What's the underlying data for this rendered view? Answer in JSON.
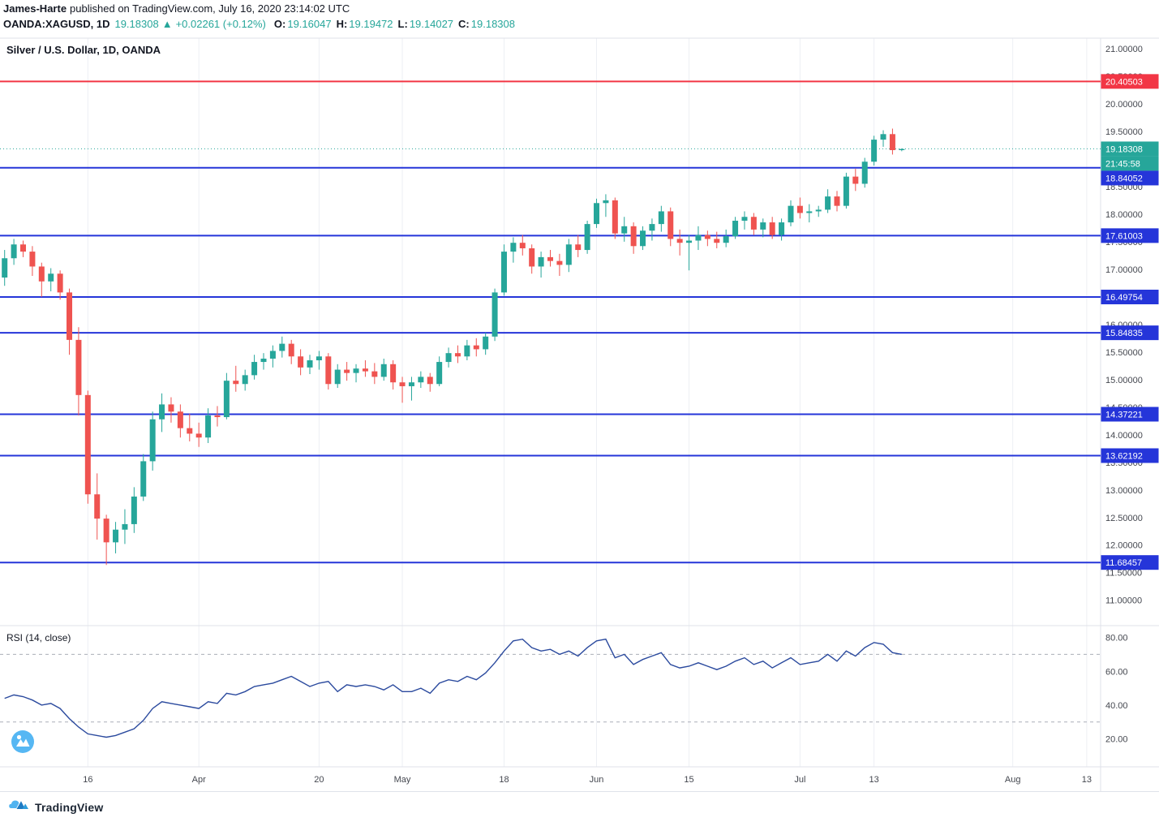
{
  "header": {
    "author": "James-Harte",
    "published": "published on TradingView.com, July 16, 2020 23:14:02 UTC",
    "symbol": "OANDA:XAGUSD, 1D",
    "last_price": "19.18308",
    "arrow": "▲",
    "change": "+0.02261 (+0.12%)",
    "ohlc": [
      {
        "label": "O:",
        "value": "19.16047"
      },
      {
        "label": "H:",
        "value": "19.19472"
      },
      {
        "label": "L:",
        "value": "19.14027"
      },
      {
        "label": "C:",
        "value": "19.18308"
      }
    ]
  },
  "chart": {
    "legend": "Silver / U.S. Dollar, 1D, OANDA",
    "rsi_legend": "RSI (14, close)"
  },
  "footer": {
    "brand": "TradingView"
  },
  "colors": {
    "up": "#26a69a",
    "down": "#ef5350",
    "grid": "#edeff4",
    "border": "#dfe2ea",
    "axis_text": "#44474f",
    "teal": "#26a69a",
    "red_line": "#f23645",
    "blue_line": "#2535d9",
    "rsi_line": "#2b4a9e",
    "watermark_blue": "#56b7f3"
  },
  "chart_data": [
    {
      "type": "candlestick",
      "symbol": "XAGUSD",
      "timeframe": "1D",
      "title": "Silver / U.S. Dollar, 1D, OANDA",
      "slots": 119,
      "ylim": [
        10.54,
        21.19
      ],
      "y_ticks": {
        "min": 11,
        "max": 21,
        "step": 0.5,
        "decimals": 5
      },
      "x_ticks": [
        {
          "i": 9,
          "label": "16"
        },
        {
          "i": 21,
          "label": "Apr"
        },
        {
          "i": 34,
          "label": "20"
        },
        {
          "i": 43,
          "label": "May"
        },
        {
          "i": 54,
          "label": "18"
        },
        {
          "i": 64,
          "label": "Jun"
        },
        {
          "i": 74,
          "label": "15"
        },
        {
          "i": 86,
          "label": "Jul"
        },
        {
          "i": 94,
          "label": "13"
        },
        {
          "i": 109,
          "label": "Aug"
        },
        {
          "i": 117,
          "label": "13"
        }
      ],
      "h_lines": [
        {
          "value": 20.40503,
          "label": "20.40503",
          "color": "#f23645"
        },
        {
          "value": 18.84052,
          "label": "18.84052",
          "color": "#2535d9"
        },
        {
          "value": 17.61003,
          "label": "17.61003",
          "color": "#2535d9"
        },
        {
          "value": 16.49754,
          "label": "16.49754",
          "color": "#2535d9"
        },
        {
          "value": 15.84835,
          "label": "15.84835",
          "color": "#2535d9"
        },
        {
          "value": 14.37221,
          "label": "14.37221",
          "color": "#2535d9"
        },
        {
          "value": 13.62192,
          "label": "13.62192",
          "color": "#2535d9"
        },
        {
          "value": 11.68457,
          "label": "11.68457",
          "color": "#2535d9"
        }
      ],
      "price_line": {
        "value": 19.18308,
        "label": "19.18308",
        "countdown": "21:45:58",
        "color": "#26a69a"
      },
      "ohlc": [
        [
          16.85,
          17.35,
          16.7,
          17.2
        ],
        [
          17.2,
          17.55,
          17.08,
          17.45
        ],
        [
          17.45,
          17.52,
          17.22,
          17.32
        ],
        [
          17.32,
          17.42,
          16.88,
          17.05
        ],
        [
          17.05,
          17.12,
          16.5,
          16.78
        ],
        [
          16.78,
          17.02,
          16.6,
          16.92
        ],
        [
          16.92,
          16.98,
          16.45,
          16.58
        ],
        [
          16.58,
          16.65,
          15.45,
          15.72
        ],
        [
          15.72,
          15.95,
          14.35,
          14.72
        ],
        [
          14.72,
          14.8,
          12.75,
          12.92
        ],
        [
          12.92,
          13.3,
          12.1,
          12.48
        ],
        [
          12.48,
          12.55,
          11.64,
          12.05
        ],
        [
          12.05,
          12.42,
          11.85,
          12.28
        ],
        [
          12.28,
          12.65,
          12.02,
          12.38
        ],
        [
          12.38,
          13.05,
          12.22,
          12.88
        ],
        [
          12.88,
          13.65,
          12.8,
          13.52
        ],
        [
          13.52,
          14.42,
          13.35,
          14.28
        ],
        [
          14.28,
          14.75,
          14.05,
          14.55
        ],
        [
          14.55,
          14.68,
          14.22,
          14.42
        ],
        [
          14.42,
          14.55,
          13.95,
          14.12
        ],
        [
          14.12,
          14.38,
          13.88,
          14.02
        ],
        [
          14.02,
          14.22,
          13.78,
          13.95
        ],
        [
          13.95,
          14.48,
          13.85,
          14.35
        ],
        [
          14.35,
          14.52,
          14.15,
          14.32
        ],
        [
          14.32,
          15.12,
          14.28,
          14.98
        ],
        [
          14.98,
          15.25,
          14.78,
          14.92
        ],
        [
          14.92,
          15.18,
          14.8,
          15.08
        ],
        [
          15.08,
          15.45,
          15.0,
          15.32
        ],
        [
          15.32,
          15.48,
          15.18,
          15.38
        ],
        [
          15.38,
          15.62,
          15.22,
          15.52
        ],
        [
          15.52,
          15.78,
          15.4,
          15.65
        ],
        [
          15.65,
          15.72,
          15.28,
          15.42
        ],
        [
          15.42,
          15.55,
          15.08,
          15.22
        ],
        [
          15.22,
          15.45,
          15.1,
          15.35
        ],
        [
          15.35,
          15.52,
          15.18,
          15.42
        ],
        [
          15.42,
          15.48,
          14.82,
          14.92
        ],
        [
          14.92,
          15.28,
          14.85,
          15.18
        ],
        [
          15.18,
          15.32,
          14.98,
          15.12
        ],
        [
          15.12,
          15.28,
          14.95,
          15.2
        ],
        [
          15.2,
          15.35,
          15.05,
          15.15
        ],
        [
          15.15,
          15.3,
          14.92,
          15.05
        ],
        [
          15.05,
          15.38,
          14.98,
          15.28
        ],
        [
          15.28,
          15.35,
          14.82,
          14.95
        ],
        [
          14.95,
          15.05,
          14.58,
          14.88
        ],
        [
          14.88,
          15.05,
          14.62,
          14.95
        ],
        [
          14.95,
          15.15,
          14.85,
          15.05
        ],
        [
          15.05,
          15.12,
          14.78,
          14.92
        ],
        [
          14.92,
          15.42,
          14.88,
          15.32
        ],
        [
          15.32,
          15.58,
          15.22,
          15.48
        ],
        [
          15.48,
          15.62,
          15.3,
          15.42
        ],
        [
          15.42,
          15.72,
          15.35,
          15.62
        ],
        [
          15.62,
          15.75,
          15.42,
          15.55
        ],
        [
          15.55,
          15.85,
          15.45,
          15.78
        ],
        [
          15.78,
          16.65,
          15.7,
          16.58
        ],
        [
          16.58,
          17.45,
          16.52,
          17.32
        ],
        [
          17.32,
          17.58,
          17.12,
          17.48
        ],
        [
          17.48,
          17.62,
          17.25,
          17.38
        ],
        [
          17.38,
          17.45,
          16.92,
          17.05
        ],
        [
          17.05,
          17.32,
          16.85,
          17.22
        ],
        [
          17.22,
          17.35,
          17.05,
          17.15
        ],
        [
          17.15,
          17.28,
          16.88,
          17.08
        ],
        [
          17.08,
          17.55,
          16.95,
          17.45
        ],
        [
          17.45,
          17.62,
          17.22,
          17.35
        ],
        [
          17.35,
          17.88,
          17.28,
          17.82
        ],
        [
          17.82,
          18.28,
          17.75,
          18.2
        ],
        [
          18.2,
          18.36,
          17.95,
          18.25
        ],
        [
          18.25,
          18.3,
          17.55,
          17.65
        ],
        [
          17.65,
          17.95,
          17.5,
          17.78
        ],
        [
          17.78,
          17.85,
          17.28,
          17.42
        ],
        [
          17.42,
          17.78,
          17.35,
          17.7
        ],
        [
          17.7,
          17.92,
          17.52,
          17.82
        ],
        [
          17.82,
          18.15,
          17.68,
          18.05
        ],
        [
          18.05,
          18.12,
          17.42,
          17.55
        ],
        [
          17.55,
          17.72,
          17.25,
          17.48
        ],
        [
          17.48,
          17.62,
          16.98,
          17.52
        ],
        [
          17.52,
          17.78,
          17.35,
          17.62
        ],
        [
          17.62,
          17.7,
          17.42,
          17.55
        ],
        [
          17.55,
          17.68,
          17.38,
          17.48
        ],
        [
          17.48,
          17.72,
          17.4,
          17.6
        ],
        [
          17.6,
          17.95,
          17.55,
          17.88
        ],
        [
          17.88,
          18.05,
          17.72,
          17.95
        ],
        [
          17.95,
          18.02,
          17.62,
          17.72
        ],
        [
          17.72,
          17.92,
          17.58,
          17.85
        ],
        [
          17.85,
          17.95,
          17.55,
          17.62
        ],
        [
          17.62,
          17.92,
          17.52,
          17.85
        ],
        [
          17.85,
          18.25,
          17.78,
          18.15
        ],
        [
          18.15,
          18.3,
          17.92,
          18.02
        ],
        [
          18.02,
          18.18,
          17.85,
          18.05
        ],
        [
          18.05,
          18.15,
          17.95,
          18.08
        ],
        [
          18.08,
          18.45,
          18.02,
          18.32
        ],
        [
          18.32,
          18.42,
          18.05,
          18.15
        ],
        [
          18.15,
          18.75,
          18.1,
          18.68
        ],
        [
          18.68,
          18.82,
          18.42,
          18.55
        ],
        [
          18.55,
          19.02,
          18.48,
          18.95
        ],
        [
          18.95,
          19.42,
          18.88,
          19.35
        ],
        [
          19.35,
          19.52,
          19.22,
          19.45
        ],
        [
          19.45,
          19.55,
          19.08,
          19.16
        ],
        [
          19.16,
          19.19,
          19.14,
          19.18
        ]
      ]
    },
    {
      "type": "line",
      "name": "RSI (14, close)",
      "color": "#2b4a9e",
      "ylim": [
        3.5,
        87
      ],
      "y_ticks": [
        80,
        60,
        40,
        20
      ],
      "bands": [
        70,
        30
      ],
      "values": [
        44,
        46,
        45,
        43,
        40,
        41,
        38,
        32,
        27,
        23,
        22,
        21,
        22,
        24,
        26,
        31,
        38,
        42,
        41,
        40,
        39,
        38,
        42,
        41,
        47,
        46,
        48,
        51,
        52,
        53,
        55,
        57,
        54,
        51,
        53,
        54,
        48,
        52,
        51,
        52,
        51,
        49,
        52,
        48,
        48,
        50,
        47,
        53,
        55,
        54,
        57,
        55,
        59,
        65,
        72,
        78,
        79,
        74,
        72,
        73,
        70,
        72,
        69,
        74,
        78,
        79,
        68,
        70,
        64,
        67,
        69,
        71,
        64,
        62,
        63,
        65,
        63,
        61,
        63,
        66,
        68,
        64,
        66,
        62,
        65,
        68,
        64,
        65,
        66,
        70,
        66,
        72,
        69,
        74,
        77,
        76,
        71,
        70
      ]
    }
  ]
}
